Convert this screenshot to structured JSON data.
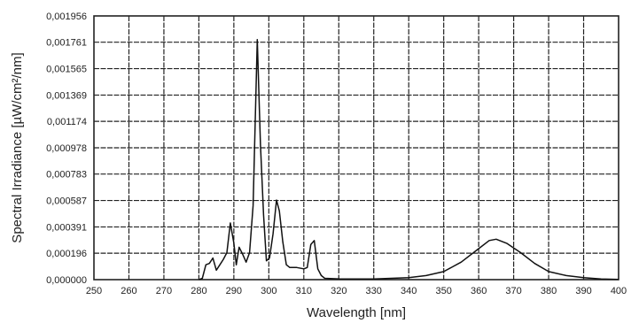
{
  "chart_data": {
    "type": "line",
    "xlabel": "Wavelength  [nm]",
    "ylabel": "Spectral Irradiance  [µW/cm²/nm]",
    "xlim": [
      250,
      400
    ],
    "ylim": [
      0,
      0.001956
    ],
    "x_ticks": [
      250,
      260,
      270,
      280,
      290,
      300,
      310,
      320,
      330,
      340,
      350,
      360,
      370,
      380,
      390,
      400
    ],
    "x_tick_labels": [
      "250",
      "260",
      "270",
      "280",
      "290",
      "300",
      "310",
      "320",
      "330",
      "340",
      "350",
      "360",
      "370",
      "380",
      "390",
      "400"
    ],
    "y_ticks": [
      0,
      0.000196,
      0.000391,
      0.000587,
      0.000783,
      0.000978,
      0.001174,
      0.001369,
      0.001565,
      0.001761,
      0.001956
    ],
    "y_tick_labels": [
      "0,000000",
      "0,000196",
      "0,000391",
      "0,000587",
      "0,000783",
      "0,000978",
      "0,001174",
      "0,001369",
      "0,001565",
      "0,001761",
      "0,001956"
    ],
    "grid": true,
    "series": [
      {
        "points": [
          [
            280,
            0.0
          ],
          [
            281,
            1e-05
          ],
          [
            282,
            0.00011
          ],
          [
            283,
            0.00012
          ],
          [
            284,
            0.00016
          ],
          [
            285,
            7e-05
          ],
          [
            286,
            0.00011
          ],
          [
            287,
            0.00015
          ],
          [
            288,
            0.0002
          ],
          [
            289,
            0.00042
          ],
          [
            290,
            0.00027
          ],
          [
            290.7,
            0.00011
          ],
          [
            291.5,
            0.00024
          ],
          [
            292.5,
            0.00019
          ],
          [
            293.5,
            0.00013
          ],
          [
            294.5,
            0.0002
          ],
          [
            295.5,
            0.00055
          ],
          [
            296.7,
            0.00178
          ],
          [
            297.6,
            0.001
          ],
          [
            298.5,
            0.00048
          ],
          [
            299.3,
            0.00014
          ],
          [
            300.2,
            0.00016
          ],
          [
            301.2,
            0.00034
          ],
          [
            302.2,
            0.00059
          ],
          [
            303.0,
            0.00051
          ],
          [
            304.0,
            0.00028
          ],
          [
            305.0,
            0.00011
          ],
          [
            306.0,
            9e-05
          ],
          [
            308.0,
            9e-05
          ],
          [
            310.0,
            8e-05
          ],
          [
            311.0,
            9e-05
          ],
          [
            312.0,
            0.00026
          ],
          [
            313.0,
            0.00029
          ],
          [
            314.0,
            8e-05
          ],
          [
            315.0,
            3e-05
          ],
          [
            316.0,
            1e-05
          ],
          [
            320.0,
            5e-06
          ],
          [
            330.0,
            5e-06
          ],
          [
            340.0,
            1.5e-05
          ],
          [
            345.0,
            3e-05
          ],
          [
            350.0,
            6e-05
          ],
          [
            355.0,
            0.00013
          ],
          [
            360.0,
            0.00023
          ],
          [
            363.0,
            0.00029
          ],
          [
            365.0,
            0.0003
          ],
          [
            368.0,
            0.00027
          ],
          [
            372.0,
            0.0002
          ],
          [
            376.0,
            0.00012
          ],
          [
            380.0,
            6e-05
          ],
          [
            385.0,
            3e-05
          ],
          [
            390.0,
            1.5e-05
          ],
          [
            395.0,
            5e-06
          ],
          [
            400.0,
            2e-06
          ]
        ]
      }
    ]
  }
}
